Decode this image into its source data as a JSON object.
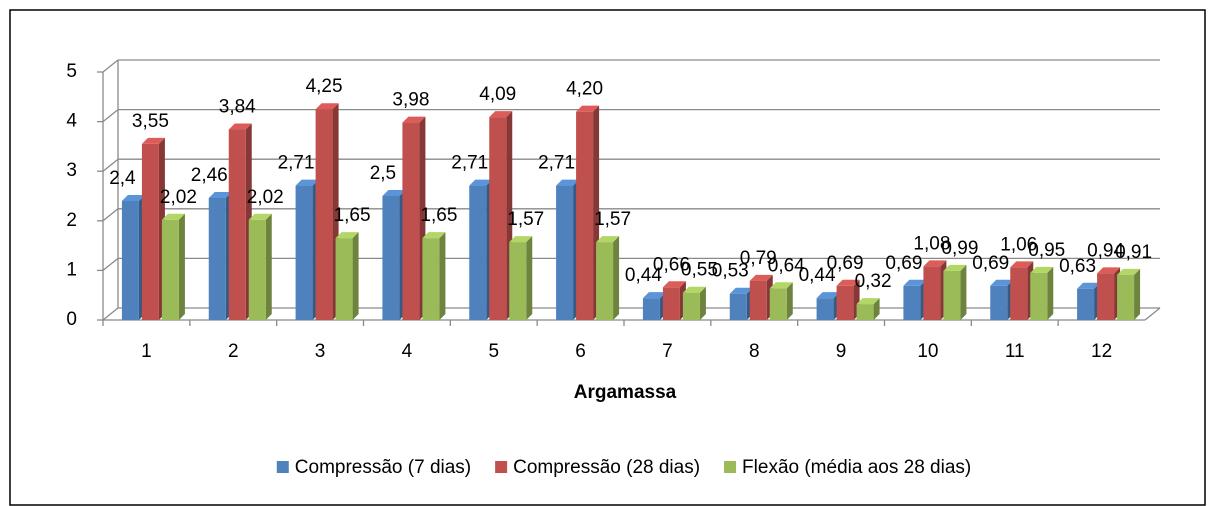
{
  "chart_data": {
    "type": "bar3d",
    "x_label": "Argamassa",
    "categories": [
      "1",
      "2",
      "3",
      "4",
      "5",
      "6",
      "7",
      "8",
      "9",
      "10",
      "11",
      "12"
    ],
    "series": [
      {
        "name": "Compressão (7 dias)",
        "color": "#4f81bd",
        "values": [
          2.4,
          2.46,
          2.71,
          2.5,
          2.71,
          2.71,
          0.44,
          0.53,
          0.44,
          0.69,
          0.69,
          0.63
        ],
        "value_labels": [
          "2,4",
          "2,46",
          "2,71",
          "2,5",
          "2,71",
          "2,71",
          "0,44",
          "0,53",
          "0,44",
          "0,69",
          "0,69",
          "0,63"
        ]
      },
      {
        "name": "Compressão (28 dias)",
        "color": "#c0504d",
        "values": [
          3.55,
          3.84,
          4.25,
          3.98,
          4.09,
          4.2,
          0.66,
          0.79,
          0.69,
          1.08,
          1.06,
          0.94
        ],
        "value_labels": [
          "3,55",
          "3,84",
          "4,25",
          "3,98",
          "4,09",
          "4,20",
          "0,66",
          "0,79",
          "0,69",
          "1,08",
          "1,06",
          "0,94"
        ]
      },
      {
        "name": "Flexão (média aos 28 dias)",
        "color": "#9bbb59",
        "values": [
          2.02,
          2.02,
          1.65,
          1.65,
          1.57,
          1.57,
          0.55,
          0.64,
          0.32,
          0.99,
          0.95,
          0.91
        ],
        "value_labels": [
          "2,02",
          "2,02",
          "1,65",
          "1,65",
          "1,57",
          "1,57",
          "0,55",
          "0,64",
          "0,32",
          "0,99",
          "0,95",
          "0,91"
        ]
      }
    ],
    "ylim": [
      0,
      5
    ],
    "yticks": [
      0,
      1,
      2,
      3,
      4,
      5
    ],
    "grid": true,
    "legend": "bottom"
  }
}
